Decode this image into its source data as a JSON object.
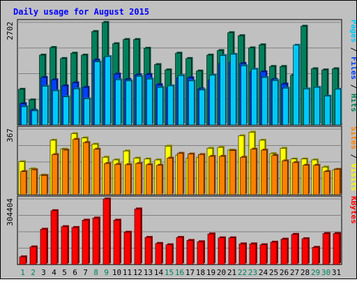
{
  "chart_data": [
    {
      "type": "bar",
      "title": "Daily usage for August 2015",
      "ytick_max": "2702",
      "legend": [
        "Pages",
        "Files",
        "Hits"
      ],
      "legend_separator": " / ",
      "colors": {
        "hits": "#00805c",
        "files": "#0040ff",
        "pages": "#00c8f8"
      },
      "categories": [
        "1",
        "2",
        "3",
        "4",
        "5",
        "6",
        "7",
        "8",
        "9",
        "10",
        "11",
        "12",
        "13",
        "14",
        "15",
        "16",
        "17",
        "18",
        "19",
        "20",
        "21",
        "22",
        "23",
        "24",
        "25",
        "26",
        "27",
        "28",
        "29",
        "30",
        "31"
      ],
      "weekend_days": [
        "1",
        "2",
        "8",
        "9",
        "15",
        "16",
        "22",
        "23",
        "29",
        "30"
      ],
      "series": [
        {
          "name": "Hits",
          "values": [
            940,
            660,
            1840,
            2040,
            1750,
            1890,
            1840,
            2460,
            2700,
            2140,
            2250,
            2250,
            2020,
            1590,
            1450,
            1890,
            1750,
            1420,
            1840,
            1960,
            2430,
            2350,
            2030,
            2110,
            1540,
            1540,
            1310,
            2600,
            1480,
            1450,
            1480
          ]
        },
        {
          "name": "Files",
          "values": [
            560,
            390,
            1250,
            1190,
            1030,
            1110,
            990,
            1710,
            1770,
            1340,
            1200,
            1320,
            1330,
            1060,
            980,
            1250,
            1240,
            950,
            1180,
            1620,
            1650,
            1620,
            1400,
            1400,
            1200,
            1080,
            0,
            0,
            0,
            0,
            0
          ]
        },
        {
          "name": "Pages",
          "values": [
            480,
            370,
            1020,
            900,
            740,
            950,
            690,
            1660,
            1800,
            1190,
            1160,
            1280,
            1210,
            990,
            1030,
            1300,
            1160,
            920,
            1310,
            1830,
            1860,
            1560,
            1470,
            1250,
            1170,
            970,
            2100,
            950,
            990,
            760,
            940
          ]
        }
      ],
      "ylim": [
        0,
        2702
      ]
    },
    {
      "type": "bar",
      "ytick_max": "367",
      "legend": [
        "Sites",
        "Visits"
      ],
      "legend_separator": " / ",
      "colors": {
        "visits": "#ffff00",
        "sites": "#ff8000"
      },
      "categories": [
        "1",
        "2",
        "3",
        "4",
        "5",
        "6",
        "7",
        "8",
        "9",
        "10",
        "11",
        "12",
        "13",
        "14",
        "15",
        "16",
        "17",
        "18",
        "19",
        "20",
        "21",
        "22",
        "23",
        "24",
        "25",
        "26",
        "27",
        "28",
        "29",
        "30",
        "31"
      ],
      "series": [
        {
          "name": "Visits",
          "values": [
            185,
            145,
            110,
            305,
            255,
            342,
            318,
            283,
            210,
            195,
            245,
            205,
            200,
            195,
            272,
            222,
            205,
            210,
            260,
            265,
            250,
            330,
            350,
            305,
            230,
            260,
            200,
            200,
            195,
            155,
            140
          ]
        },
        {
          "name": "Sites",
          "values": [
            130,
            140,
            108,
            225,
            250,
            310,
            292,
            255,
            175,
            170,
            168,
            175,
            168,
            165,
            205,
            232,
            228,
            225,
            215,
            215,
            247,
            210,
            255,
            250,
            220,
            190,
            180,
            165,
            165,
            130,
            142
          ]
        }
      ],
      "ylim": [
        0,
        367
      ]
    },
    {
      "type": "bar",
      "ytick_max": "304404",
      "legend": [
        "KBytes"
      ],
      "colors": {
        "kbytes": "#ff0000"
      },
      "categories": [
        "1",
        "2",
        "3",
        "4",
        "5",
        "6",
        "7",
        "8",
        "9",
        "10",
        "11",
        "12",
        "13",
        "14",
        "15",
        "16",
        "17",
        "18",
        "19",
        "20",
        "21",
        "22",
        "23",
        "24",
        "25",
        "26",
        "27",
        "28",
        "29",
        "30",
        "31"
      ],
      "series": [
        {
          "name": "KBytes",
          "values": [
            36000,
            82000,
            164000,
            250000,
            176000,
            172000,
            206000,
            216000,
            304404,
            206000,
            150000,
            258000,
            126000,
            98000,
            92000,
            126000,
            112000,
            106000,
            142000,
            124000,
            124000,
            96000,
            96000,
            92000,
            104000,
            118000,
            140000,
            120000,
            80000,
            144000,
            144000
          ]
        }
      ],
      "ylim": [
        0,
        304404
      ]
    }
  ]
}
